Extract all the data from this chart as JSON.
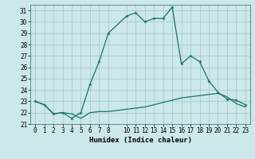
{
  "xlabel": "Humidex (Indice chaleur)",
  "background_color": "#cce8e8",
  "grid_color": "#aacccc",
  "line_color": "#1a7070",
  "xlim": [
    -0.5,
    23.5
  ],
  "ylim": [
    21.0,
    31.5
  ],
  "yticks": [
    21,
    22,
    23,
    24,
    25,
    26,
    27,
    28,
    29,
    30,
    31
  ],
  "xticks": [
    0,
    1,
    2,
    3,
    4,
    5,
    6,
    7,
    8,
    10,
    11,
    12,
    13,
    14,
    15,
    16,
    17,
    18,
    19,
    20,
    21,
    22,
    23
  ],
  "xtick_labels": [
    "0",
    "1",
    "2",
    "3",
    "4",
    "5",
    "6",
    "7",
    "8",
    "10",
    "11",
    "12",
    "13",
    "14",
    "15",
    "16",
    "17",
    "18",
    "19",
    "20",
    "21",
    "22",
    "23"
  ],
  "series1_x": [
    0,
    1,
    2,
    3,
    4,
    5,
    6,
    7,
    8,
    10,
    11,
    12,
    13,
    14,
    15,
    16,
    17,
    18,
    19,
    20,
    21,
    22,
    23
  ],
  "series1_y": [
    23.0,
    22.7,
    21.9,
    22.0,
    21.9,
    21.5,
    22.0,
    22.1,
    22.1,
    22.3,
    22.4,
    22.5,
    22.7,
    22.9,
    23.1,
    23.3,
    23.4,
    23.5,
    23.6,
    23.7,
    23.4,
    22.8,
    22.5
  ],
  "series2_x": [
    0,
    1,
    2,
    3,
    4,
    5,
    6,
    7,
    8,
    10,
    11,
    12,
    13,
    14,
    15,
    16,
    17,
    18,
    19,
    20,
    21,
    22,
    23
  ],
  "series2_y": [
    23.0,
    22.7,
    21.9,
    22.0,
    21.5,
    22.0,
    24.5,
    26.5,
    29.0,
    30.5,
    30.8,
    30.0,
    30.3,
    30.3,
    31.3,
    26.3,
    27.0,
    26.5,
    24.8,
    23.8,
    23.2,
    23.1,
    22.7
  ]
}
